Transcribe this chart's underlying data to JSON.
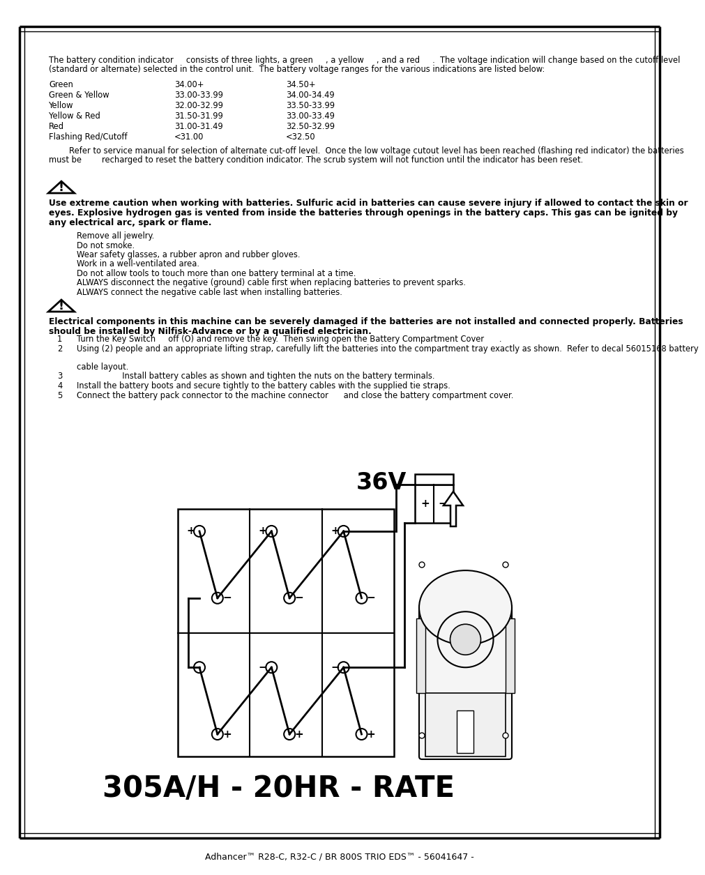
{
  "page_bg": "#ffffff",
  "text_color": "#000000",
  "footer_text": "Adhancer™ R28-C, R32-C / BR 800S TRIO EDS™ - 56041647 -",
  "intro_text_line1": "The battery condition indicator     consists of three lights, a green     , a yellow     , and a red     .  The voltage indication will change based on the cutoff level",
  "intro_text_line2": "(standard or alternate) selected in the control unit.  The battery voltage ranges for the various indications are listed below:",
  "table_rows": [
    [
      "Green",
      "34.00+",
      "34.50+"
    ],
    [
      "Green & Yellow",
      "33.00-33.99",
      "34.00-34.49"
    ],
    [
      "Yellow",
      "32.00-32.99",
      "33.50-33.99"
    ],
    [
      "Yellow & Red",
      "31.50-31.99",
      "33.00-33.49"
    ],
    [
      "Red",
      "31.00-31.49",
      "32.50-32.99"
    ],
    [
      "Flashing Red/Cutoff",
      "<31.00",
      "<32.50"
    ]
  ],
  "note_line1": "        Refer to service manual for selection of alternate cut-off level.  Once the low voltage cutout level has been reached (flashing red indicator) the batteries",
  "note_line2": "must be        recharged to reset the battery condition indicator. The scrub system will not function until the indicator has been reset.",
  "caution_text1_lines": [
    "Use extreme caution when working with batteries. Sulfuric acid in batteries can cause severe injury if allowed to contact the skin or",
    "eyes. Explosive hydrogen gas is vented from inside the batteries through openings in the battery caps. This gas can be ignited by",
    "any electrical arc, spark or flame."
  ],
  "bullet_items": [
    "Remove all jewelry.",
    "Do not smoke.",
    "Wear safety glasses, a rubber apron and rubber gloves.",
    "Work in a well-ventilated area.",
    "Do not allow tools to touch more than one battery terminal at a time.",
    "ALWAYS disconnect the negative (ground) cable first when replacing batteries to prevent sparks.",
    "ALWAYS connect the negative cable last when installing batteries."
  ],
  "caution_text2_lines": [
    "Electrical components in this machine can be severely damaged if the batteries are not installed and connected properly. Batteries",
    "should be installed by Nilfisk-Advance or by a qualified electrician."
  ],
  "numbered_items": [
    [
      "1",
      "Turn the Key Switch     off (O) and remove the key.  Then swing open the Battery Compartment Cover      ."
    ],
    [
      "2",
      "Using (2) people and an appropriate lifting strap, carefully lift the batteries into the compartment tray exactly as shown.  Refer to decal 56015168 battery"
    ],
    [
      "",
      "cable layout."
    ],
    [
      "3",
      "                  Install battery cables as shown and tighten the nuts on the battery terminals."
    ],
    [
      "4",
      "Install the battery boots and secure tightly to the battery cables with the supplied tie straps."
    ],
    [
      "5",
      "Connect the battery pack connector to the machine connector      and close the battery compartment cover."
    ]
  ],
  "bottom_label": "305A/H - 20HR - RATE",
  "label_36v": "36V"
}
